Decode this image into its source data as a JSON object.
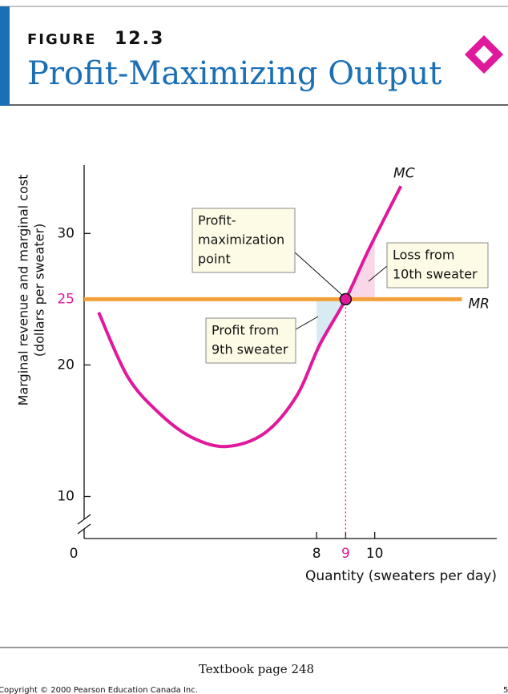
{
  "header": {
    "figure_label": "FIGURE",
    "figure_number": "12.3",
    "title": "Profit-Maximizing Output"
  },
  "chart_data": {
    "type": "line",
    "x_label": "Quantity (sweaters per day)",
    "y_label": [
      "Marginal revenue and marginal cost",
      "(dollars per sweater)"
    ],
    "xlim": [
      0,
      14.2
    ],
    "xticks": [
      0,
      8,
      9,
      10
    ],
    "ylim": [
      6.8,
      35.2
    ],
    "yticks": [
      10,
      20,
      25,
      30
    ],
    "series": [
      {
        "name": "MC",
        "color": "#e0189c",
        "x": [
          0.5,
          1.5,
          2.6,
          3.7,
          4.9,
          6.2,
          7.3,
          8.1,
          9,
          9.8,
          10.9
        ],
        "values": [
          24,
          19.1,
          16.3,
          14.5,
          13.8,
          14.8,
          17.6,
          21.5,
          25,
          28.8,
          33.6
        ]
      },
      {
        "name": "MR",
        "color": "#f2a03a",
        "x": [
          0,
          13
        ],
        "values": [
          25,
          25
        ]
      }
    ],
    "point": {
      "x": 9,
      "y": 25
    },
    "highlight_color": "#e0189c",
    "annotations": [
      {
        "lines": [
          "Profit-",
          "maximization",
          "point"
        ]
      },
      {
        "lines": [
          "Loss from",
          "10th sweater"
        ]
      },
      {
        "lines": [
          "Profit from",
          "9th sweater"
        ]
      }
    ]
  },
  "footer": {
    "page": "Textbook page 248",
    "copyright": "Copyright © 2000 Pearson Education Canada Inc.",
    "slide": "5"
  }
}
